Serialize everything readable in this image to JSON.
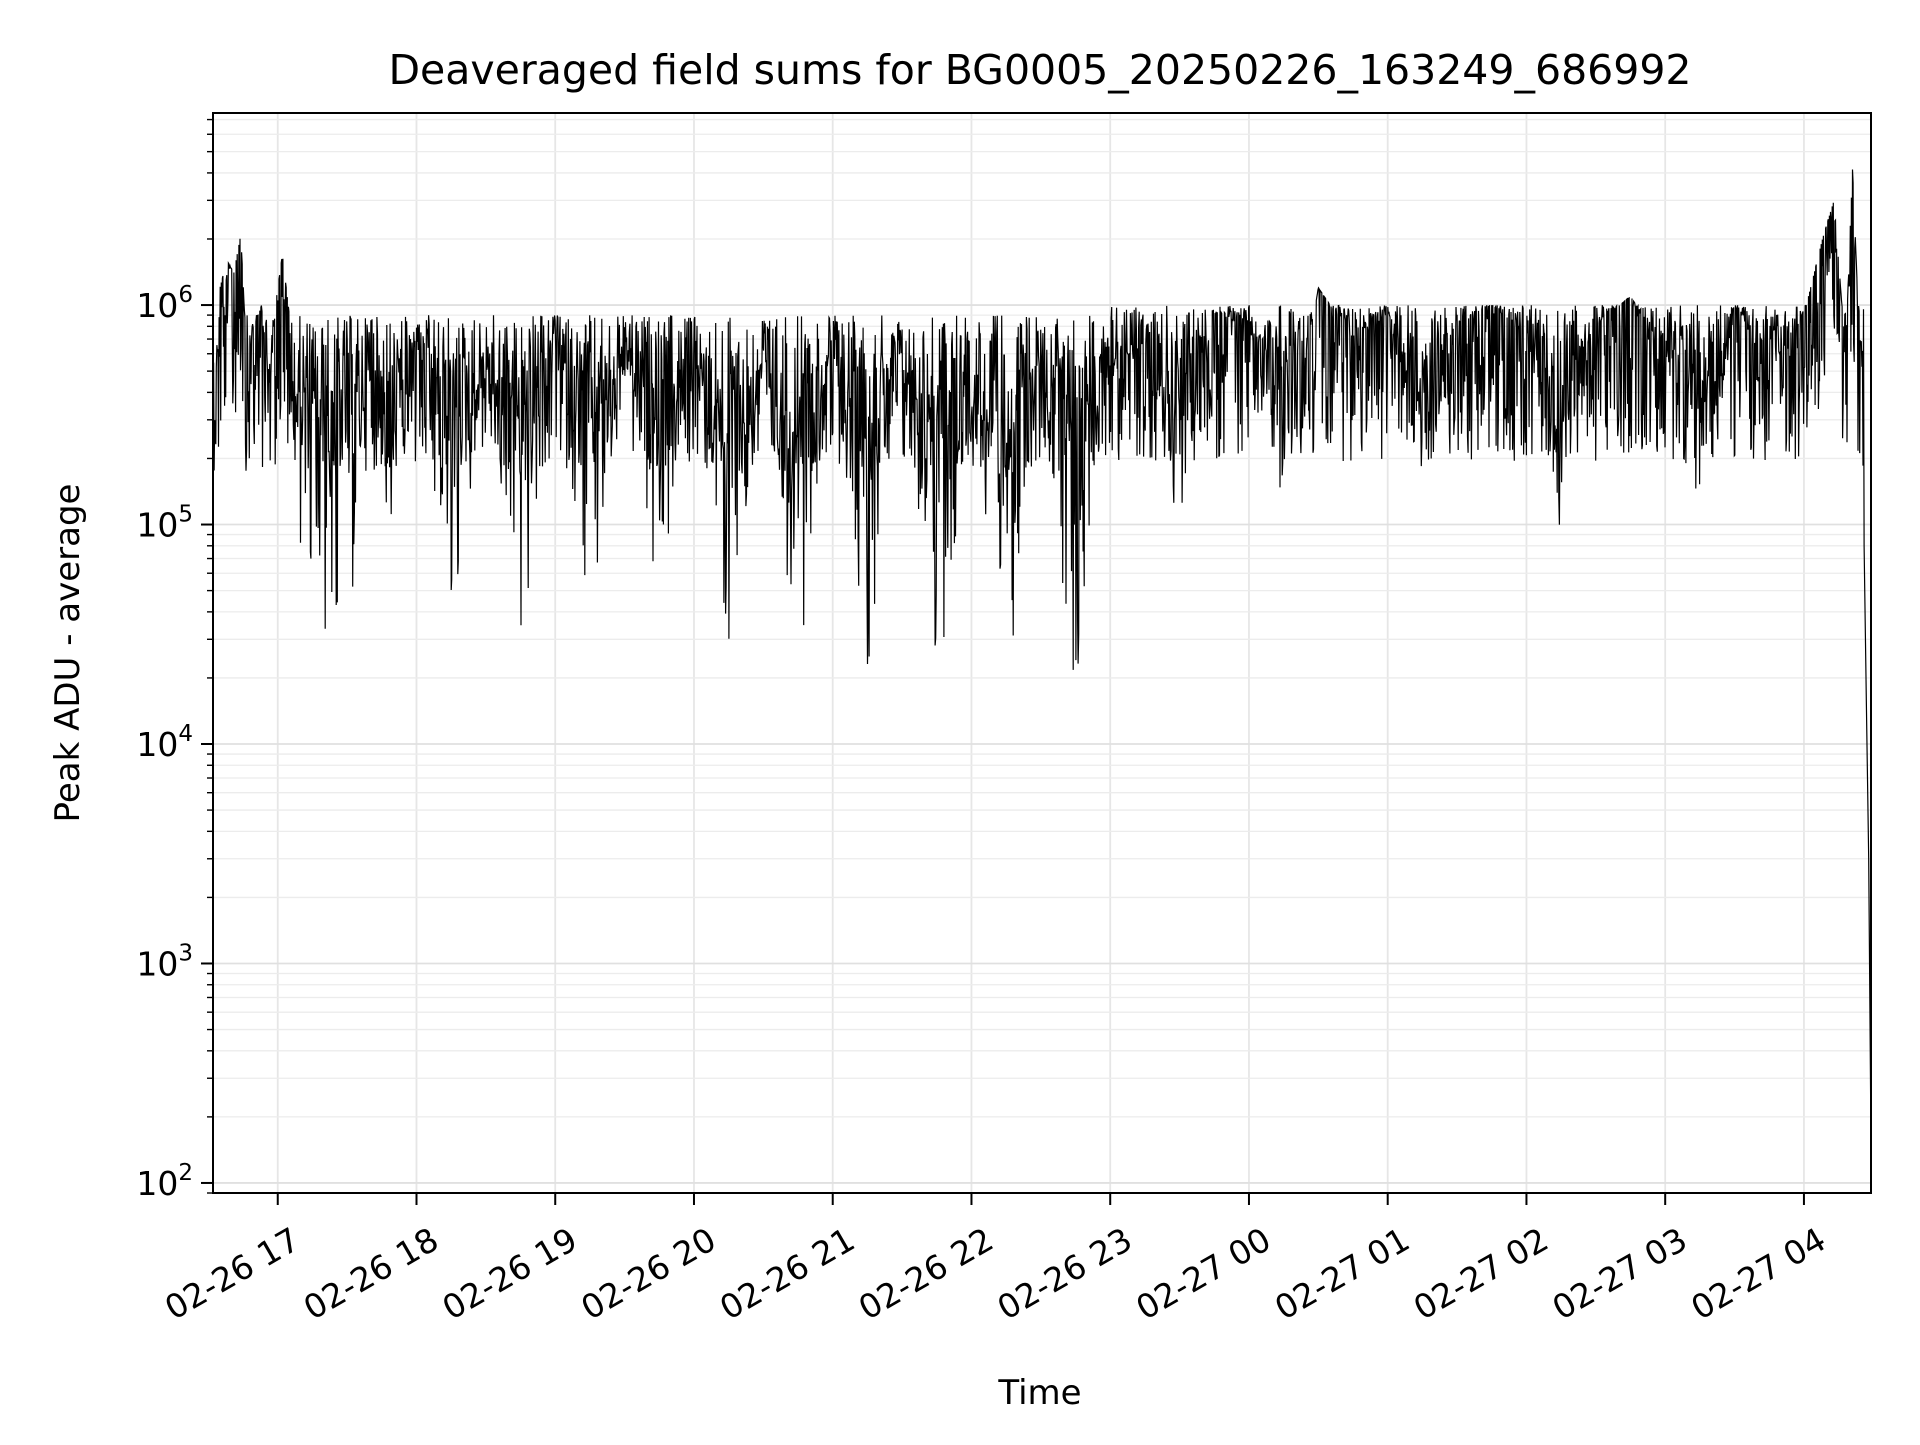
{
  "chart_data": {
    "type": "line",
    "title": "Deaveraged field sums for BG0005_20250226_163249_686992",
    "xlabel": "Time",
    "ylabel": "Peak ADU - average",
    "yscale": "log",
    "xlim": [
      "2025-02-26 16:32",
      "2025-02-27 04:29"
    ],
    "ylim": [
      90,
      7500000
    ],
    "grid": true,
    "legend": "none",
    "line_color": "#000000",
    "x_ticks": [
      {
        "time": "2025-02-26 17:00",
        "label": "02-26 17"
      },
      {
        "time": "2025-02-26 18:00",
        "label": "02-26 18"
      },
      {
        "time": "2025-02-26 19:00",
        "label": "02-26 19"
      },
      {
        "time": "2025-02-26 20:00",
        "label": "02-26 20"
      },
      {
        "time": "2025-02-26 21:00",
        "label": "02-26 21"
      },
      {
        "time": "2025-02-26 22:00",
        "label": "02-26 22"
      },
      {
        "time": "2025-02-26 23:00",
        "label": "02-26 23"
      },
      {
        "time": "2025-02-27 00:00",
        "label": "02-27 00"
      },
      {
        "time": "2025-02-27 01:00",
        "label": "02-27 01"
      },
      {
        "time": "2025-02-27 02:00",
        "label": "02-27 02"
      },
      {
        "time": "2025-02-27 03:00",
        "label": "02-27 03"
      },
      {
        "time": "2025-02-27 04:00",
        "label": "02-27 04"
      }
    ],
    "y_ticks": [
      {
        "value": 100,
        "base": "10",
        "exp": "2"
      },
      {
        "value": 1000,
        "base": "10",
        "exp": "3"
      },
      {
        "value": 10000,
        "base": "10",
        "exp": "4"
      },
      {
        "value": 100000,
        "base": "10",
        "exp": "5"
      },
      {
        "value": 1000000,
        "base": "10",
        "exp": "6"
      }
    ],
    "series": [
      {
        "x": [
          "2025-02-26 16:32",
          "2025-02-26 16:35",
          "2025-02-26 16:38",
          "2025-02-26 16:41",
          "2025-02-26 16:44",
          "2025-02-26 16:47",
          "2025-02-26 16:50",
          "2025-02-26 16:53",
          "2025-02-26 16:56",
          "2025-02-26 16:59",
          "2025-02-26 17:02",
          "2025-02-26 17:05",
          "2025-02-26 17:08",
          "2025-02-26 17:11",
          "2025-02-26 17:20",
          "2025-02-26 17:30",
          "2025-02-26 17:40",
          "2025-02-26 17:50",
          "2025-02-26 18:00",
          "2025-02-26 18:15",
          "2025-02-26 18:30",
          "2025-02-26 18:45",
          "2025-02-26 19:00",
          "2025-02-26 19:15",
          "2025-02-26 19:30",
          "2025-02-26 19:45",
          "2025-02-26 20:00",
          "2025-02-26 20:15",
          "2025-02-26 20:30",
          "2025-02-26 20:45",
          "2025-02-26 21:00",
          "2025-02-26 21:15",
          "2025-02-26 21:30",
          "2025-02-26 21:45",
          "2025-02-26 22:00",
          "2025-02-26 22:15",
          "2025-02-26 22:30",
          "2025-02-26 22:45",
          "2025-02-26 22:55",
          "2025-02-26 23:00",
          "2025-02-26 23:15",
          "2025-02-26 23:30",
          "2025-02-26 23:45",
          "2025-02-27 00:00",
          "2025-02-27 00:15",
          "2025-02-27 00:30",
          "2025-02-27 00:45",
          "2025-02-27 01:00",
          "2025-02-27 01:15",
          "2025-02-27 01:30",
          "2025-02-27 01:45",
          "2025-02-27 02:00",
          "2025-02-27 02:15",
          "2025-02-27 02:30",
          "2025-02-27 02:45",
          "2025-02-27 03:00",
          "2025-02-27 03:15",
          "2025-02-27 03:30",
          "2025-02-27 03:45",
          "2025-02-27 04:00",
          "2025-02-27 04:08",
          "2025-02-27 04:13",
          "2025-02-27 04:18",
          "2025-02-27 04:21",
          "2025-02-27 04:24",
          "2025-02-27 04:26",
          "2025-02-27 04:27",
          "2025-02-27 04:28",
          "2025-02-27 04:29"
        ],
        "y": [
          90000,
          1200000,
          1600000,
          1400000,
          2100000,
          450000,
          800000,
          1000000,
          300000,
          1000000,
          1700000,
          900000,
          120000,
          60000,
          30000,
          20000,
          800000,
          25000,
          700000,
          22000,
          600000,
          20000,
          850000,
          25000,
          700000,
          40000,
          600000,
          18000,
          500000,
          17000,
          600000,
          20000,
          550000,
          14000,
          300000,
          15000,
          500000,
          14000,
          300000,
          500000,
          600000,
          90000,
          900000,
          800000,
          120000,
          1200000,
          700000,
          900000,
          120000,
          800000,
          1000000,
          700000,
          90000,
          800000,
          1100000,
          600000,
          80000,
          1000000,
          500000,
          900000,
          2000000,
          3000000,
          600000,
          4200000,
          700000,
          80000,
          15000,
          3000,
          150
        ]
      }
    ]
  }
}
